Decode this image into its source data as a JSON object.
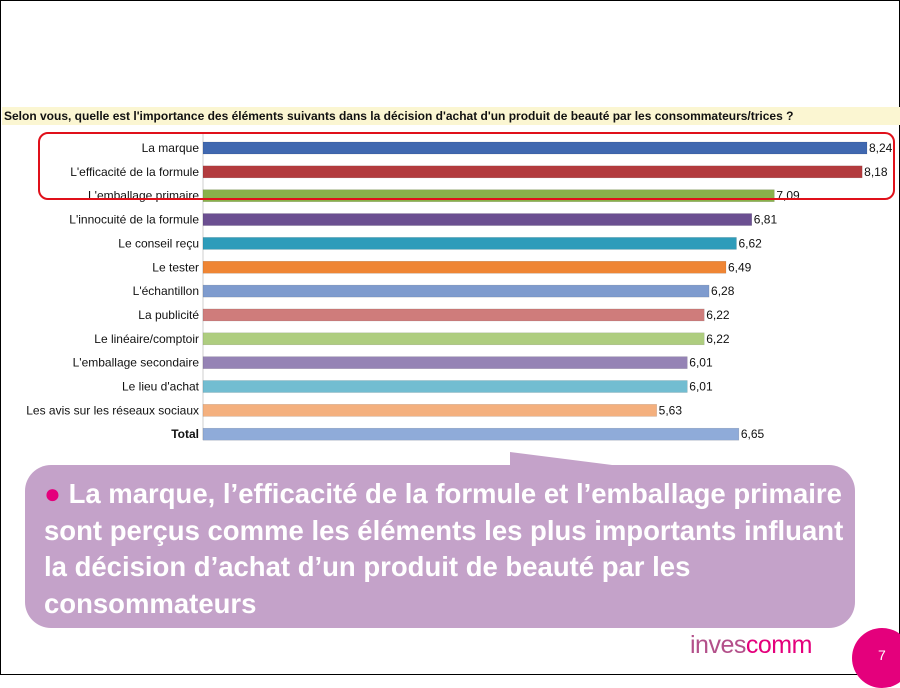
{
  "question": "Selon vous, quelle est l'importance des éléments suivants dans la décision d'achat d'un produit de beauté par les consommateurs/trices ?",
  "chart_data": {
    "type": "bar",
    "orientation": "horizontal",
    "categories": [
      "La marque",
      "L'efficacité de la formule",
      "L'emballage primaire",
      "L'innocuité de la formule",
      "Le conseil reçu",
      "Le tester",
      "L'échantillon",
      "La publicité",
      "Le linéaire/comptoir",
      "L'emballage secondaire",
      "Le lieu d'achat",
      "Les avis sur les réseaux sociaux",
      "Total"
    ],
    "values": [
      8.24,
      8.18,
      7.09,
      6.81,
      6.62,
      6.49,
      6.28,
      6.22,
      6.22,
      6.01,
      6.01,
      5.63,
      6.65
    ],
    "value_labels": [
      "8,24",
      "8,18",
      "7,09",
      "6,81",
      "6,62",
      "6,49",
      "6,28",
      "6,22",
      "6,22",
      "6,01",
      "6,01",
      "5,63",
      "6,65"
    ],
    "colors": [
      "#4068b0",
      "#b33b3e",
      "#89b14a",
      "#6b4f91",
      "#2e9cba",
      "#ef8534",
      "#7e9bce",
      "#cf7c7b",
      "#aecd7f",
      "#9583b5",
      "#72bdd1",
      "#f4b07e",
      "#8fabd9"
    ],
    "bold_categories": [
      "Total"
    ],
    "xlim": [
      0,
      8.24
    ],
    "grid": false,
    "title": "",
    "xlabel": "",
    "ylabel": ""
  },
  "callout": {
    "bullet": "●",
    "text": "La marque, l’efficacité de la formule et l’emballage primaire sont perçus comme les éléments les plus importants influant la décision d’achat d’un produit de beauté par les consommateurs"
  },
  "logo": {
    "part1": "inves",
    "part2": "comm"
  },
  "page_number": "7",
  "theme": {
    "accent": "#e4007c",
    "callout_bg": "#c4a2c9",
    "highlight": "#e0101a"
  }
}
